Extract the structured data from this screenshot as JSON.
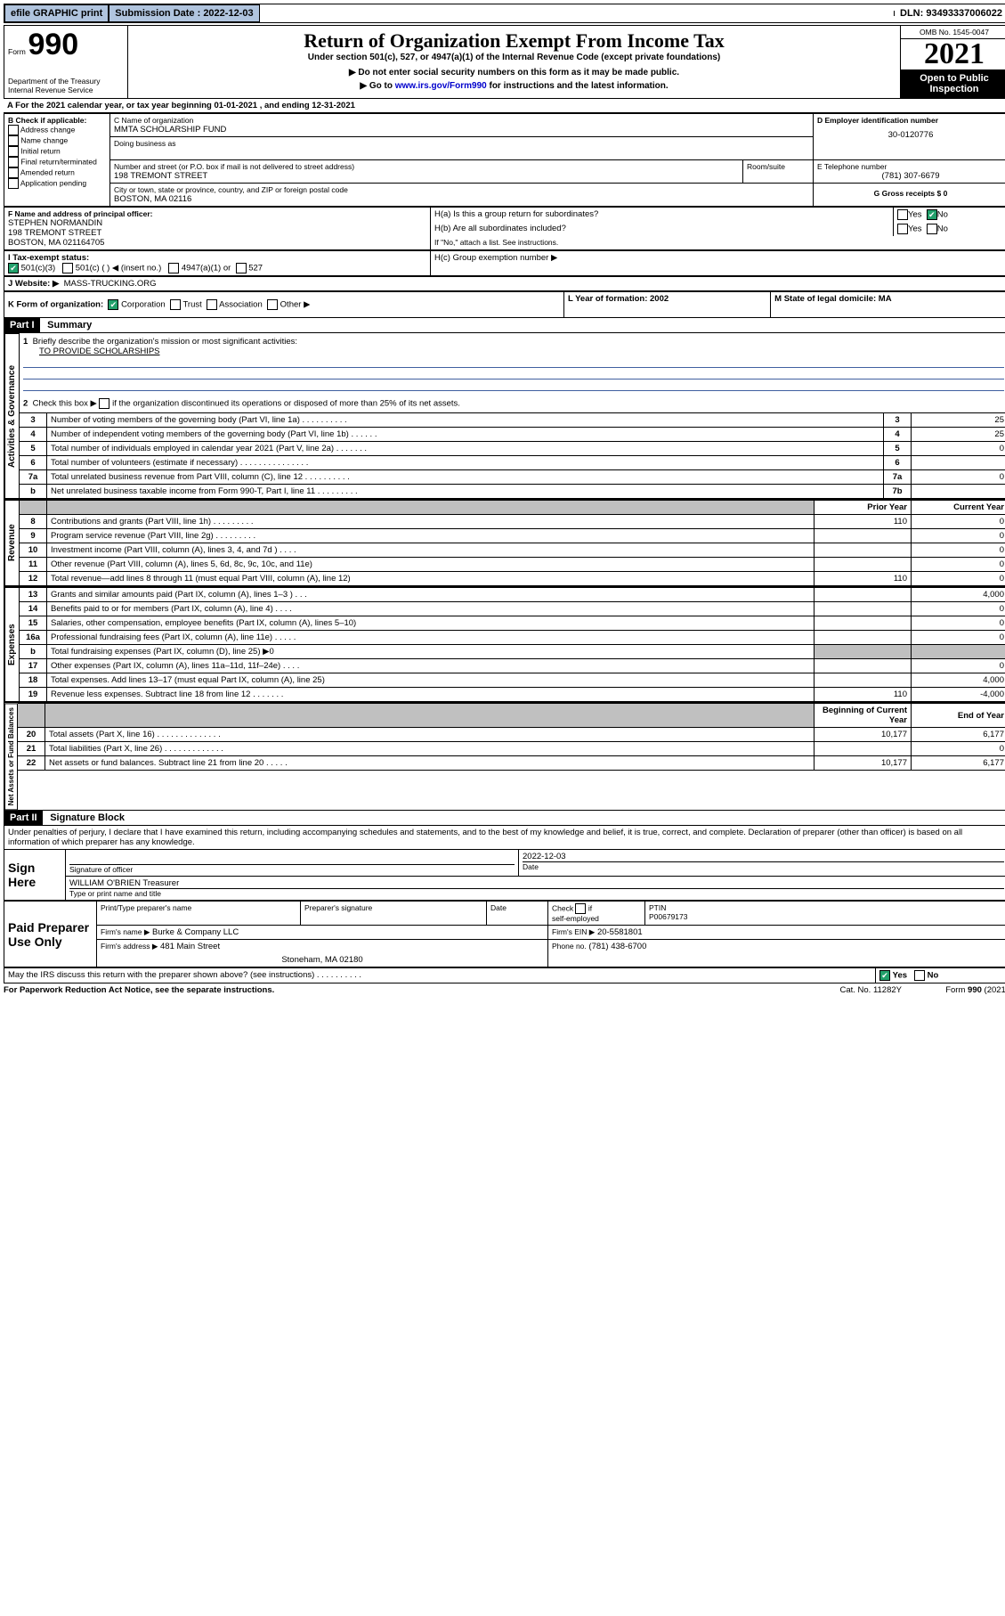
{
  "top": {
    "efile": "efile GRAPHIC print",
    "submission": "Submission Date : 2022-12-03",
    "dln": "DLN: 93493337006022"
  },
  "header": {
    "form_prefix": "Form",
    "form_number": "990",
    "dept": "Department of the Treasury",
    "irs": "Internal Revenue Service",
    "title": "Return of Organization Exempt From Income Tax",
    "under": "Under section 501(c), 527, or 4947(a)(1) of the Internal Revenue Code (except private foundations)",
    "ssn": "▶ Do not enter social security numbers on this form as it may be made public.",
    "goto_pre": "▶ Go to ",
    "goto_link": "www.irs.gov/Form990",
    "goto_post": " for instructions and the latest information.",
    "omb": "OMB No. 1545-0047",
    "year": "2021",
    "open": "Open to Public Inspection"
  },
  "A": {
    "label": "A For the 2021 calendar year, or tax year beginning 01-01-2021    , and ending 12-31-2021"
  },
  "B": {
    "title": "B Check if applicable:",
    "items": [
      "Address change",
      "Name change",
      "Initial return",
      "Final return/terminated",
      "Amended return",
      "Application pending"
    ]
  },
  "C": {
    "name_label": "C Name of organization",
    "name": "MMTA SCHOLARSHIP FUND",
    "dba_label": "Doing business as",
    "addr_label": "Number and street (or P.O. box if mail is not delivered to street address)",
    "room_label": "Room/suite",
    "addr": "198 TREMONT STREET",
    "city_label": "City or town, state or province, country, and ZIP or foreign postal code",
    "city": "BOSTON, MA  02116"
  },
  "D": {
    "label": "D Employer identification number",
    "val": "30-0120776"
  },
  "E": {
    "label": "E Telephone number",
    "val": "(781) 307-6679"
  },
  "G": {
    "label": "G Gross receipts $ 0"
  },
  "F": {
    "label": "F  Name and address of principal officer:",
    "name": "STEPHEN NORMANDIN",
    "addr": "198 TREMONT STREET",
    "city": "BOSTON, MA  021164705"
  },
  "H": {
    "a": "H(a)  Is this a group return for subordinates?",
    "b": "H(b)  Are all subordinates included?",
    "b_note": "If \"No,\" attach a list. See instructions.",
    "c": "H(c)  Group exemption number ▶",
    "yes": "Yes",
    "no": "No"
  },
  "I": {
    "label": "I    Tax-exempt status:",
    "c3": "501(c)(3)",
    "c_other": "501(c) (  ) ◀ (insert no.)",
    "a4947": "4947(a)(1) or",
    "s527": "527"
  },
  "J": {
    "label": "J   Website: ▶",
    "val": "MASS-TRUCKING.ORG"
  },
  "K": {
    "label": "K Form of organization:",
    "corp": "Corporation",
    "trust": "Trust",
    "assoc": "Association",
    "other": "Other ▶"
  },
  "L": {
    "label": "L Year of formation: 2002"
  },
  "M": {
    "label": "M State of legal domicile: MA"
  },
  "partI": {
    "hdr": "Part I",
    "title": "Summary",
    "l1": "Briefly describe the organization's mission or most significant activities:",
    "l1_text": "TO PROVIDE SCHOLARSHIPS",
    "l2": "Check this box ▶",
    "l2_post": "  if the organization discontinued its operations or disposed of more than 25% of its net assets.",
    "side_gov": "Activities & Governance",
    "side_rev": "Revenue",
    "side_exp": "Expenses",
    "side_net": "Net Assets or Fund Balances",
    "gov_rows": [
      {
        "n": "3",
        "d": "Number of voting members of the governing body (Part VI, line 1a)   .    .    .    .    .    .    .    .    .    .",
        "rn": "3",
        "v": "25"
      },
      {
        "n": "4",
        "d": "Number of independent voting members of the governing body (Part VI, line 1b)   .    .    .    .    .    .",
        "rn": "4",
        "v": "25"
      },
      {
        "n": "5",
        "d": "Total number of individuals employed in calendar year 2021 (Part V, line 2a)   .    .    .    .    .    .    .",
        "rn": "5",
        "v": "0"
      },
      {
        "n": "6",
        "d": "Total number of volunteers (estimate if necessary)   .    .    .    .    .    .    .    .    .    .    .    .    .    .    .",
        "rn": "6",
        "v": ""
      },
      {
        "n": "7a",
        "d": "Total unrelated business revenue from Part VIII, column (C), line 12   .    .    .    .    .    .    .    .    .    .",
        "rn": "7a",
        "v": "0"
      },
      {
        "n": "b",
        "d": "Net unrelated business taxable income from Form 990-T, Part I, line 11   .    .    .    .    .    .    .    .    .",
        "rn": "7b",
        "v": ""
      }
    ],
    "col_prior": "Prior Year",
    "col_curr": "Current Year",
    "rev_rows": [
      {
        "n": "8",
        "d": "Contributions and grants (Part VIII, line 1h)   .    .    .    .    .    .    .    .    .",
        "p": "110",
        "c": "0"
      },
      {
        "n": "9",
        "d": "Program service revenue (Part VIII, line 2g)   .    .    .    .    .    .    .    .    .",
        "p": "",
        "c": "0"
      },
      {
        "n": "10",
        "d": "Investment income (Part VIII, column (A), lines 3, 4, and 7d )   .    .    .    .",
        "p": "",
        "c": "0"
      },
      {
        "n": "11",
        "d": "Other revenue (Part VIII, column (A), lines 5, 6d, 8c, 9c, 10c, and 11e)",
        "p": "",
        "c": "0"
      },
      {
        "n": "12",
        "d": "Total revenue—add lines 8 through 11 (must equal Part VIII, column (A), line 12)",
        "p": "110",
        "c": "0"
      }
    ],
    "exp_rows": [
      {
        "n": "13",
        "d": "Grants and similar amounts paid (Part IX, column (A), lines 1–3 )   .     .     .",
        "p": "",
        "c": "4,000"
      },
      {
        "n": "14",
        "d": "Benefits paid to or for members (Part IX, column (A), line 4)   .    .    .    .",
        "p": "",
        "c": "0"
      },
      {
        "n": "15",
        "d": "Salaries, other compensation, employee benefits (Part IX, column (A), lines 5–10)",
        "p": "",
        "c": "0"
      },
      {
        "n": "16a",
        "d": "Professional fundraising fees (Part IX, column (A), line 11e)   .    .    .    .    .",
        "p": "",
        "c": "0"
      },
      {
        "n": "b",
        "d": "Total fundraising expenses (Part IX, column (D), line 25) ▶0",
        "p": "gray",
        "c": "gray"
      },
      {
        "n": "17",
        "d": "Other expenses (Part IX, column (A), lines 11a–11d, 11f–24e)   .    .    .    .",
        "p": "",
        "c": "0"
      },
      {
        "n": "18",
        "d": "Total expenses. Add lines 13–17 (must equal Part IX, column (A), line 25)",
        "p": "",
        "c": "4,000"
      },
      {
        "n": "19",
        "d": "Revenue less expenses. Subtract line 18 from line 12   .    .    .    .    .    .    .",
        "p": "110",
        "c": "-4,000"
      }
    ],
    "net_hdr_begin": "Beginning of Current Year",
    "net_hdr_end": "End of Year",
    "net_rows": [
      {
        "n": "20",
        "d": "Total assets (Part X, line 16)   .    .    .    .    .    .    .    .    .    .    .    .    .    .",
        "p": "10,177",
        "c": "6,177"
      },
      {
        "n": "21",
        "d": "Total liabilities (Part X, line 26)   .    .    .    .    .    .    .    .    .    .    .    .    .",
        "p": "",
        "c": "0"
      },
      {
        "n": "22",
        "d": "Net assets or fund balances. Subtract line 21 from line 20   .    .    .    .    .",
        "p": "10,177",
        "c": "6,177"
      }
    ]
  },
  "partII": {
    "hdr": "Part II",
    "title": "Signature Block",
    "decl": "Under penalties of perjury, I declare that I have examined this return, including accompanying schedules and statements, and to the best of my knowledge and belief, it is true, correct, and complete. Declaration of preparer (other than officer) is based on all information of which preparer has any knowledge.",
    "sign_here": "Sign Here",
    "sig_label": "Signature of officer",
    "date_label": "Date",
    "date_val": "2022-12-03",
    "name_val": "WILLIAM O'BRIEN  Treasurer",
    "name_label": "Type or print name and title",
    "paid": "Paid Preparer Use Only",
    "prep_name_label": "Print/Type preparer's name",
    "prep_sig_label": "Preparer's signature",
    "check_self": "Check",
    "self_emp": "self-employed",
    "if": "if",
    "ptin_label": "PTIN",
    "ptin_val": "P00679173",
    "firm_name_label": "Firm's name     ▶",
    "firm_name": "Burke & Company LLC ",
    "firm_ein_label": "Firm's EIN ▶",
    "firm_ein": "20-5581801",
    "firm_addr_label": "Firm's address ▶",
    "firm_addr1": "481 Main Street",
    "firm_addr2": "Stoneham, MA  02180",
    "phone_label": "Phone no.",
    "phone": "(781) 438-6700",
    "may_discuss": "May the IRS discuss this return with the preparer shown above? (see instructions)   .    .    .    .    .    .    .    .    .    .",
    "yes": "Yes",
    "no": "No"
  },
  "footer": {
    "paperwork": "For Paperwork Reduction Act Notice, see the separate instructions.",
    "cat": "Cat. No. 11282Y",
    "form": "Form 990 (2021)"
  }
}
